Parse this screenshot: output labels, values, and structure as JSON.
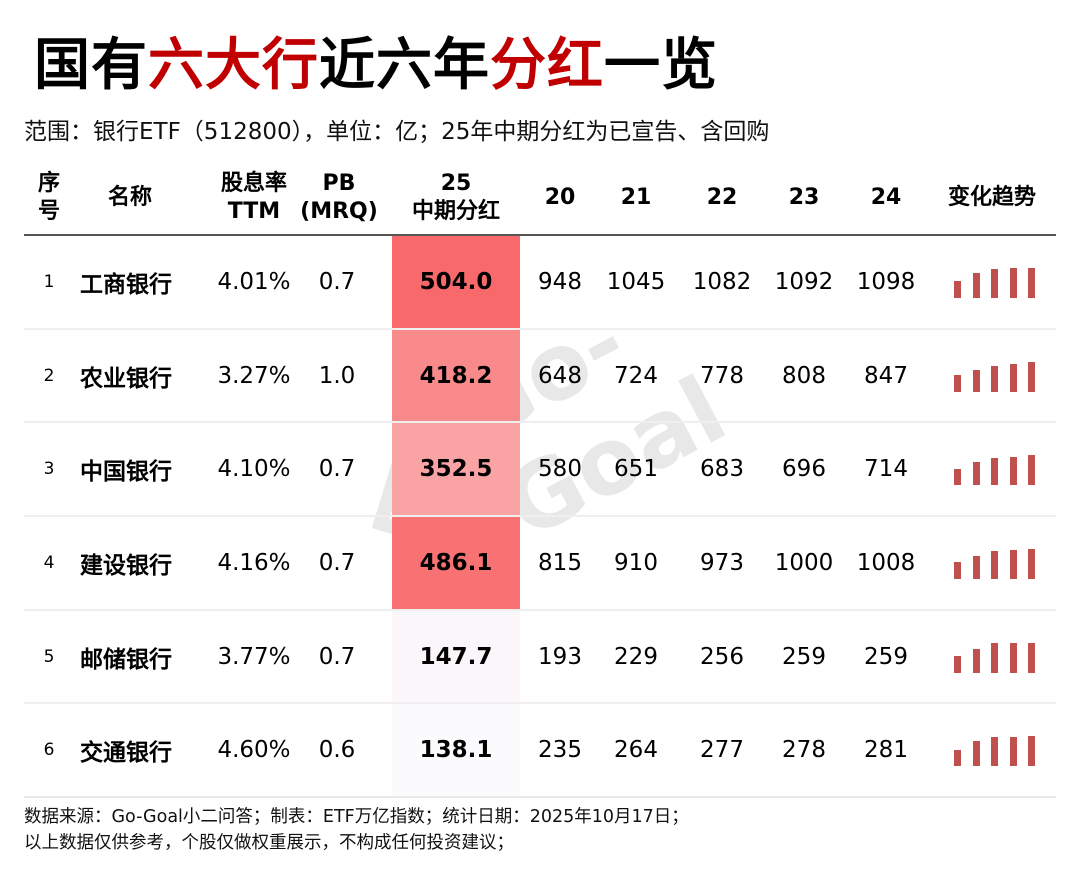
{
  "title": {
    "parts": [
      {
        "text": "国有",
        "color": "#000000"
      },
      {
        "text": "六大行",
        "color": "#c00000"
      },
      {
        "text": "近六年",
        "color": "#000000"
      },
      {
        "text": "分红",
        "color": "#c00000"
      },
      {
        "text": "一览",
        "color": "#000000"
      }
    ]
  },
  "subtitle": "范围：银行ETF（512800），单位：亿；25年中期分红为已宣告、含回购",
  "headers": {
    "idx": [
      "序",
      "号"
    ],
    "name": "名称",
    "yield": [
      "股息率",
      "TTM"
    ],
    "pb": [
      "PB",
      "(MRQ)"
    ],
    "div25": [
      "25",
      "中期分红"
    ],
    "y20": "20",
    "y21": "21",
    "y22": "22",
    "y23": "23",
    "y24": "24",
    "trend": "变化趋势"
  },
  "rows": [
    {
      "idx": "1",
      "name": "工商银行",
      "yield": "4.01%",
      "pb": "0.7",
      "div25": "504.0",
      "div25_bg": "#f8696b",
      "y20": "948",
      "y21": "1045",
      "y22": "1082",
      "y23": "1092",
      "y24": "1098"
    },
    {
      "idx": "2",
      "name": "农业银行",
      "yield": "3.27%",
      "pb": "1.0",
      "div25": "418.2",
      "div25_bg": "#f98a8c",
      "y20": "648",
      "y21": "724",
      "y22": "778",
      "y23": "808",
      "y24": "847"
    },
    {
      "idx": "3",
      "name": "中国银行",
      "yield": "4.10%",
      "pb": "0.7",
      "div25": "352.5",
      "div25_bg": "#faa3a5",
      "y20": "580",
      "y21": "651",
      "y22": "683",
      "y23": "696",
      "y24": "714"
    },
    {
      "idx": "4",
      "name": "建设银行",
      "yield": "4.16%",
      "pb": "0.7",
      "div25": "486.1",
      "div25_bg": "#f87173",
      "y20": "815",
      "y21": "910",
      "y22": "973",
      "y23": "1000",
      "y24": "1008"
    },
    {
      "idx": "5",
      "name": "邮储银行",
      "yield": "3.77%",
      "pb": "0.7",
      "div25": "147.7",
      "div25_bg": "#faf6fa",
      "y20": "193",
      "y21": "229",
      "y22": "256",
      "y23": "259",
      "y24": "259"
    },
    {
      "idx": "6",
      "name": "交通银行",
      "yield": "4.60%",
      "pb": "0.6",
      "div25": "138.1",
      "div25_bg": "#fbfbfd",
      "y20": "235",
      "y21": "264",
      "y22": "277",
      "y23": "278",
      "y24": "281"
    }
  ],
  "footer": {
    "line1": "数据来源：Go-Goal小二问答；制表：ETF万亿指数；统计日期：2025年10月17日；",
    "line2": "以上数据仅供参考，个股仅做权重展示，不构成任何投资建议；"
  },
  "watermark": "Go-Goal",
  "colors": {
    "accent_red": "#c00000",
    "spark_bar": "#c0504d",
    "heat_high": "#f8696b",
    "heat_low": "#fbfbfd"
  },
  "chart_data": {
    "type": "table",
    "title": "国有六大行近六年分红一览",
    "subtitle": "范围：银行ETF（512800），单位：亿；25年中期分红为已宣告、含回购",
    "columns": [
      "序号",
      "名称",
      "股息率TTM",
      "PB(MRQ)",
      "25中期分红",
      "20",
      "21",
      "22",
      "23",
      "24",
      "变化趋势"
    ],
    "categories": [
      "工商银行",
      "农业银行",
      "中国银行",
      "建设银行",
      "邮储银行",
      "交通银行"
    ],
    "dividend_yield_ttm_pct": [
      4.01,
      3.27,
      4.1,
      4.16,
      3.77,
      4.6
    ],
    "pb_mrq": [
      0.7,
      1.0,
      0.7,
      0.7,
      0.7,
      0.6
    ],
    "interim_dividend_25": [
      504.0,
      418.2,
      352.5,
      486.1,
      147.7,
      138.1
    ],
    "x": [
      "20",
      "21",
      "22",
      "23",
      "24"
    ],
    "series": [
      {
        "name": "工商银行",
        "values": [
          948,
          1045,
          1082,
          1092,
          1098
        ]
      },
      {
        "name": "农业银行",
        "values": [
          648,
          724,
          778,
          808,
          847
        ]
      },
      {
        "name": "中国银行",
        "values": [
          580,
          651,
          683,
          696,
          714
        ]
      },
      {
        "name": "建设银行",
        "values": [
          815,
          910,
          973,
          1000,
          1008
        ]
      },
      {
        "name": "邮储银行",
        "values": [
          193,
          229,
          256,
          259,
          259
        ]
      },
      {
        "name": "交通银行",
        "values": [
          235,
          264,
          277,
          278,
          281
        ]
      }
    ],
    "unit": "亿",
    "notes": "25中期分红列以红色热力着色；变化趋势列为20-24年迷你柱状图"
  }
}
